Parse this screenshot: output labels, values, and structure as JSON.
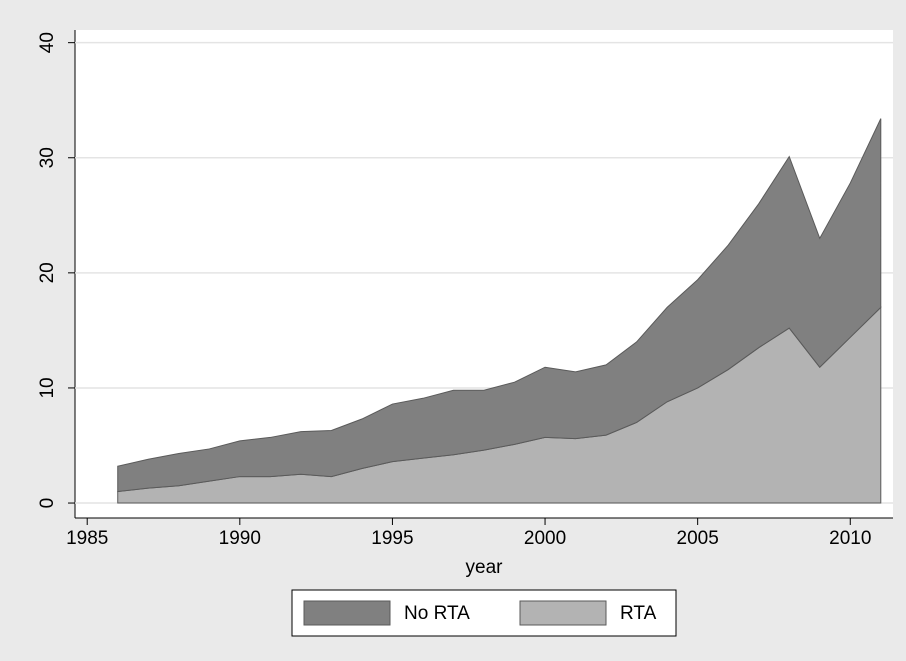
{
  "chart_data": {
    "type": "stacked_area",
    "x": [
      1986,
      1987,
      1988,
      1989,
      1990,
      1991,
      1992,
      1993,
      1994,
      1995,
      1996,
      1997,
      1998,
      1999,
      2000,
      2001,
      2002,
      2003,
      2004,
      2005,
      2006,
      2007,
      2008,
      2009,
      2010,
      2011
    ],
    "series": [
      {
        "name": "No RTA",
        "color": "#808080",
        "values": [
          2.2,
          2.5,
          2.8,
          2.8,
          3.1,
          3.4,
          3.7,
          4.0,
          4.3,
          5.0,
          5.2,
          5.6,
          5.2,
          5.4,
          6.1,
          5.8,
          6.1,
          7.0,
          8.2,
          9.4,
          10.8,
          12.5,
          14.9,
          11.2,
          13.4,
          16.4
        ]
      },
      {
        "name": "RTA",
        "color": "#b3b3b3",
        "values": [
          1.0,
          1.3,
          1.5,
          1.9,
          2.3,
          2.3,
          2.5,
          2.3,
          3.0,
          3.6,
          3.9,
          4.2,
          4.6,
          5.1,
          5.7,
          5.6,
          5.9,
          7.0,
          8.8,
          10.0,
          11.6,
          13.5,
          15.2,
          11.8,
          14.4,
          17.0
        ]
      }
    ],
    "x_label": "year",
    "xlim": [
      1984.6,
      2011.4
    ],
    "xticks": [
      1985,
      1990,
      1995,
      2000,
      2005,
      2010
    ],
    "ylim": [
      -1.3,
      41.1
    ],
    "yticks": [
      0,
      10,
      20,
      30,
      40
    ],
    "grid": true
  }
}
